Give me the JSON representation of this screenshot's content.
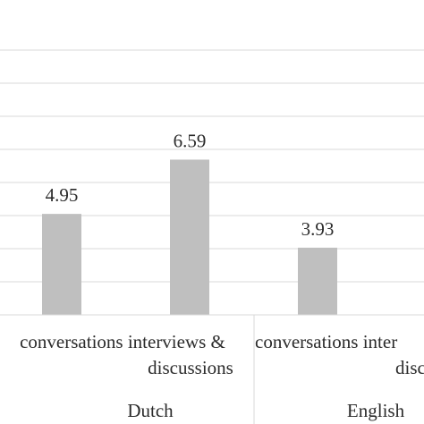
{
  "chart_data": {
    "type": "bar",
    "title": "",
    "xlabel": "",
    "ylabel": "",
    "grid": true,
    "bar_color": "#bfbfbf",
    "gridline_color": "#d9d9d9",
    "ylim_visible": [
      1.9,
      9.9
    ],
    "bars": [
      {
        "group": "Dutch",
        "category": "conversations interviews & discussions",
        "value": 4.95,
        "label": "4.95"
      },
      {
        "group": "Dutch",
        "category": "",
        "value": 6.59,
        "label": "6.59"
      },
      {
        "group": "English",
        "category": "conversations interviews & discussions",
        "value": 3.93,
        "label": "3.93"
      },
      {
        "group": "English",
        "category": "",
        "value": null,
        "label": ""
      }
    ],
    "category_labels": [
      {
        "line1": "conversations interviews &",
        "line2": "discussions"
      },
      {
        "line1": "conversations inter",
        "line2": "disc"
      }
    ],
    "groups": [
      "Dutch",
      "English"
    ]
  }
}
